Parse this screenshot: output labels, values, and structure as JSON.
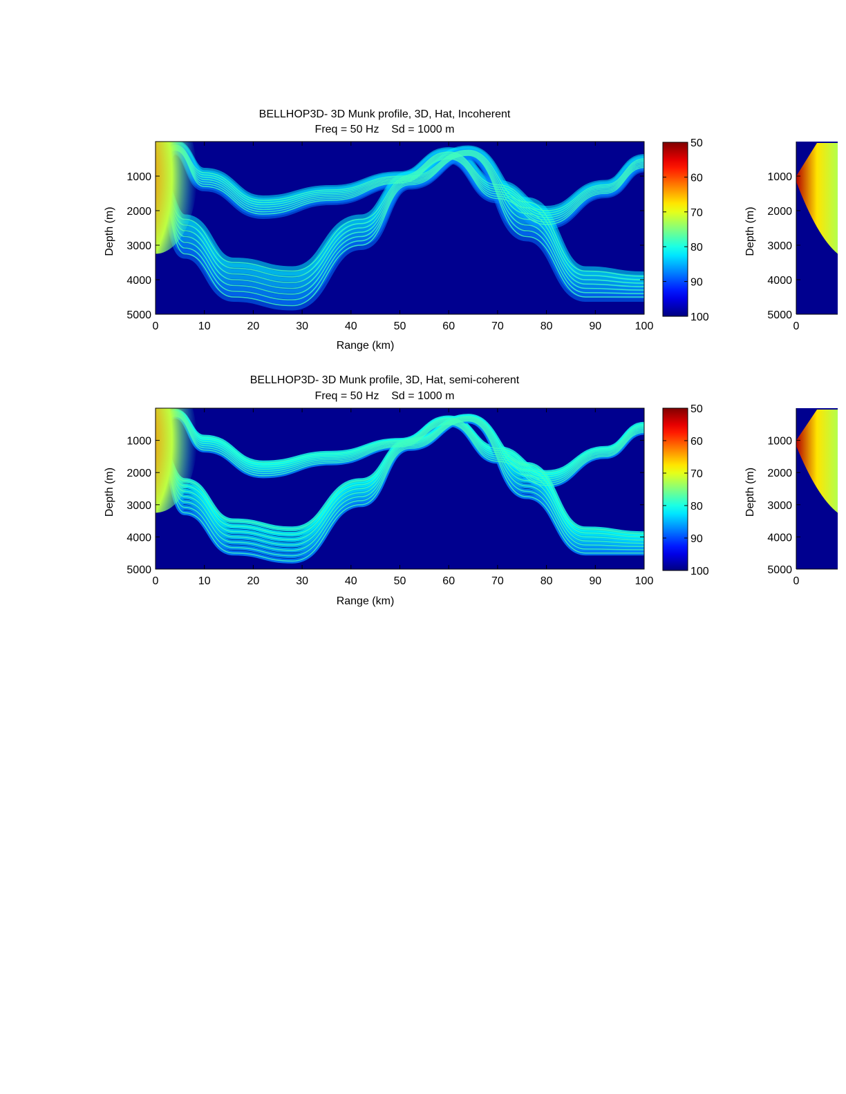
{
  "chart_data": [
    {
      "type": "heatmap",
      "title": "BELLHOP3D- 3D Munk profile, 3D, Hat, Incoherent",
      "subtitle": "Freq = 50 Hz    Sd = 1000 m",
      "xlabel": "Range (km)",
      "ylabel": "Depth (m)",
      "xlim": [
        0,
        100
      ],
      "ylim": [
        0,
        5000
      ],
      "y_reversed": true,
      "x_ticks": [
        0,
        10,
        20,
        30,
        40,
        50,
        60,
        70,
        80,
        90,
        100
      ],
      "y_ticks": [
        1000,
        2000,
        3000,
        4000,
        5000
      ],
      "colorbar": {
        "min": 50,
        "max": 100,
        "ticks": [
          50,
          60,
          70,
          80,
          90,
          100
        ],
        "colormap": "jet-reversed"
      },
      "source_depth": 1000,
      "frequency": 50,
      "ray_pattern": "smooth"
    },
    {
      "type": "heatmap",
      "title": "BELLHOP3D- 3D Munk profile, 3D, Hat, semi-coherent",
      "subtitle": "Freq = 50 Hz    Sd = 1000 m",
      "xlabel": "Range (km)",
      "ylabel": "Depth (m)",
      "xlim": [
        0,
        100
      ],
      "ylim": [
        0,
        5000
      ],
      "y_reversed": true,
      "x_ticks": [
        0,
        10,
        20,
        30,
        40,
        50,
        60,
        70,
        80,
        90,
        100
      ],
      "y_ticks": [
        1000,
        2000,
        3000,
        4000,
        5000
      ],
      "colorbar": {
        "min": 50,
        "max": 100,
        "ticks": [
          50,
          60,
          70,
          80,
          90,
          100
        ],
        "colormap": "jet-reversed"
      },
      "source_depth": 1000,
      "frequency": 50,
      "ray_pattern": "banded"
    }
  ],
  "partial_panels": [
    {
      "ylabel": "Depth (m)",
      "y_ticks": [
        1000,
        2000,
        3000,
        4000,
        5000
      ],
      "x_first_tick": 0
    },
    {
      "ylabel": "Depth (m)",
      "y_ticks": [
        1000,
        2000,
        3000,
        4000,
        5000
      ],
      "x_first_tick": 0
    }
  ],
  "colors": {
    "background": "#00008f",
    "axis": "#000000"
  }
}
